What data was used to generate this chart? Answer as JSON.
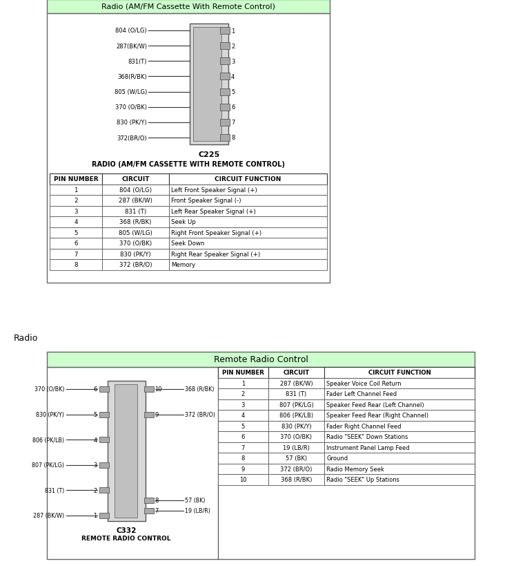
{
  "bg_color": "#ffffff",
  "section1_title": "Radio (AM/FM Cassette With Remote Control)",
  "section1_title_bg": "#ccffcc",
  "section1_title_color": "#000000",
  "connector1_label": "C225",
  "connector1_sublabel": "RADIO (AM/FM CASSETTE WITH REMOTE CONTROL)",
  "table1_headers": [
    "PIN NUMBER",
    "CIRCUIT",
    "CIRCUIT FUNCTION"
  ],
  "table1_rows": [
    [
      "1",
      "804 (O/LG)",
      "Left Front Speaker Signal (+)"
    ],
    [
      "2",
      "287 (BK/W)",
      "Front Speaker Signal (-)"
    ],
    [
      "3",
      "831 (T)",
      "Left Rear Speaker Signal (+)"
    ],
    [
      "4",
      "368 (R/BK)",
      "Seek Up"
    ],
    [
      "5",
      "805 (W/LG)",
      "Right Front Speaker Signal (+)"
    ],
    [
      "6",
      "370 (O/BK)",
      "Seek Down"
    ],
    [
      "7",
      "830 (PK/Y)",
      "Right Rear Speaker Signal (+)"
    ],
    [
      "8",
      "372 (BR/O)",
      "Memory"
    ]
  ],
  "connector1_pins_left": [
    "804 (O/LG)",
    "287(BK/W)",
    "831(T)",
    "368(R/BK)",
    "805 (W/LG)",
    "370 (O/BK)",
    "830 (PK/Y)",
    "372(BR/O)"
  ],
  "connector1_pin_numbers": [
    "1",
    "2",
    "3",
    "4",
    "5",
    "6",
    "7",
    "8"
  ],
  "radio_label": "Radio",
  "section2_title": "Remote Radio Control",
  "section2_title_bg": "#ccffcc",
  "section2_title_color": "#000000",
  "connector2_label": "C332",
  "connector2_sublabel": "REMOTE RADIO CONTROL",
  "table2_headers": [
    "PIN NUMBER",
    "CIRCUIT",
    "CIRCUIT FUNCTION"
  ],
  "table2_rows": [
    [
      "1",
      "287 (BK/W)",
      "Speaker Voice Coil Return"
    ],
    [
      "2",
      "831 (T)",
      "Fader Left Channel Feed"
    ],
    [
      "3",
      "807 (PK/LG)",
      "Speaker Feed Rear (Left Channel)"
    ],
    [
      "4",
      "806 (PK/LB)",
      "Speaker Feed Rear (Right Channel)"
    ],
    [
      "5",
      "830 (PK/Y)",
      "Fader Right Channel Feed"
    ],
    [
      "6",
      "370 (O/BK)",
      "Radio \"SEEK\" Down Stations"
    ],
    [
      "7",
      "19 (LB/R)",
      "Instrument Panel Lamp Feed"
    ],
    [
      "8",
      "57 (BK)",
      "Ground"
    ],
    [
      "9",
      "372 (BR/O)",
      "Radio Memory Seek"
    ],
    [
      "10",
      "368 (R/BK)",
      "Radio \"SEEK\" Up Stations"
    ]
  ],
  "conn2_left_labels": [
    "370 (O/BK)",
    "830 (PK/Y)",
    "806 (PK/LB)",
    "807 (PK/LG)",
    "831 (T)",
    "287 (BK/W)"
  ],
  "conn2_left_nums": [
    "6",
    "5",
    "4",
    "3",
    "2",
    "1"
  ],
  "conn2_right_labels": [
    "368 (R/BK)",
    "372 (BR/O)"
  ],
  "conn2_right_nums": [
    "10",
    "9"
  ],
  "conn2_bot_right_label1": "57 (BK)",
  "conn2_bot_right_num1": "8",
  "conn2_bot_right_label2": "19 (LB/R)",
  "conn2_bot_right_num2": "7",
  "conn2_top_right_label": "368 (R/BK)",
  "conn2_top_right_num": "10"
}
